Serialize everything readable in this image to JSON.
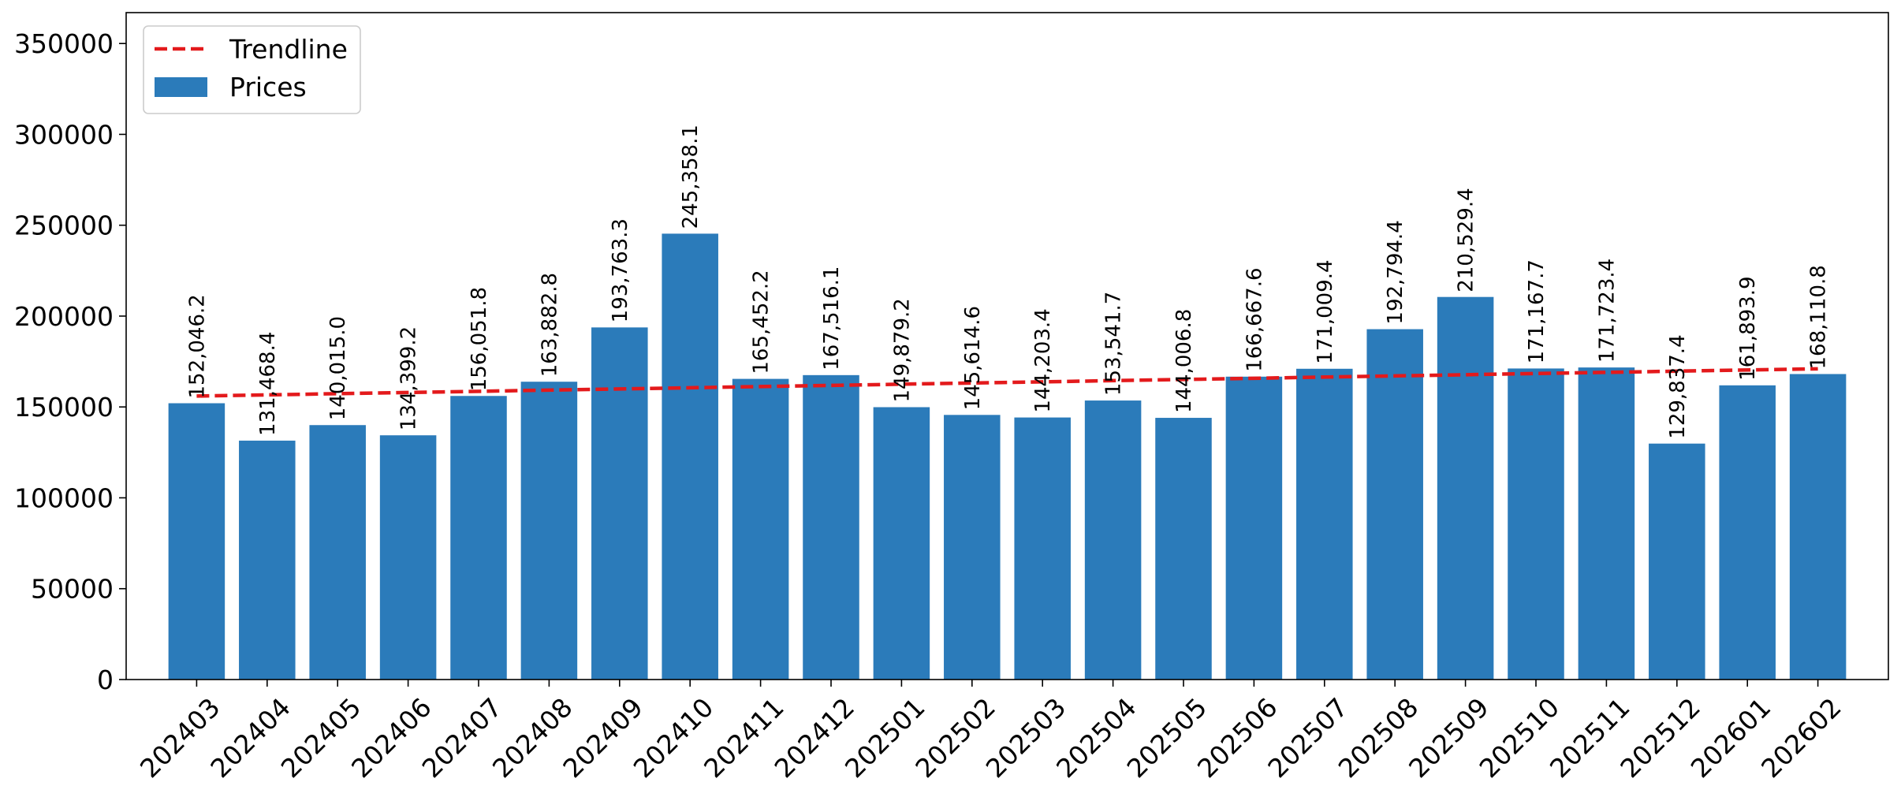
{
  "chart_data": {
    "type": "bar",
    "title": "",
    "xlabel": "",
    "ylabel": "",
    "ylim": [
      0,
      367000
    ],
    "yticks": [
      0,
      50000,
      100000,
      150000,
      200000,
      250000,
      300000,
      350000
    ],
    "grid": false,
    "legend_position": "top-left",
    "categories": [
      "202403",
      "202404",
      "202405",
      "202406",
      "202407",
      "202408",
      "202409",
      "202410",
      "202411",
      "202412",
      "202501",
      "202502",
      "202503",
      "202504",
      "202505",
      "202506",
      "202507",
      "202508",
      "202509",
      "202510",
      "202511",
      "202512",
      "202601",
      "202602"
    ],
    "series": [
      {
        "name": "Prices",
        "kind": "bar",
        "color": "#2b7bba",
        "values": [
          152046.2,
          131468.4,
          140015.0,
          134399.2,
          156051.8,
          163882.8,
          193763.3,
          245358.1,
          165452.2,
          167516.1,
          149879.2,
          145614.6,
          144203.4,
          153541.7,
          144006.8,
          166667.6,
          171009.4,
          192794.4,
          210529.4,
          171167.7,
          171723.4,
          129837.4,
          161893.9,
          168110.8
        ],
        "labels": [
          "152,046.2",
          "131,468.4",
          "140,015.0",
          "134,399.2",
          "156,051.8",
          "163,882.8",
          "193,763.3",
          "245,358.1",
          "165,452.2",
          "167,516.1",
          "149,879.2",
          "145,614.6",
          "144,203.4",
          "153,541.7",
          "144,006.8",
          "166,667.6",
          "171,009.4",
          "192,794.4",
          "210,529.4",
          "171,167.7",
          "171,723.4",
          "129,837.4",
          "161,893.9",
          "168,110.8"
        ]
      },
      {
        "name": "Trendline",
        "kind": "line",
        "style": "dashed",
        "color": "#e31a1c",
        "start": 156000,
        "end": 171000
      }
    ]
  }
}
